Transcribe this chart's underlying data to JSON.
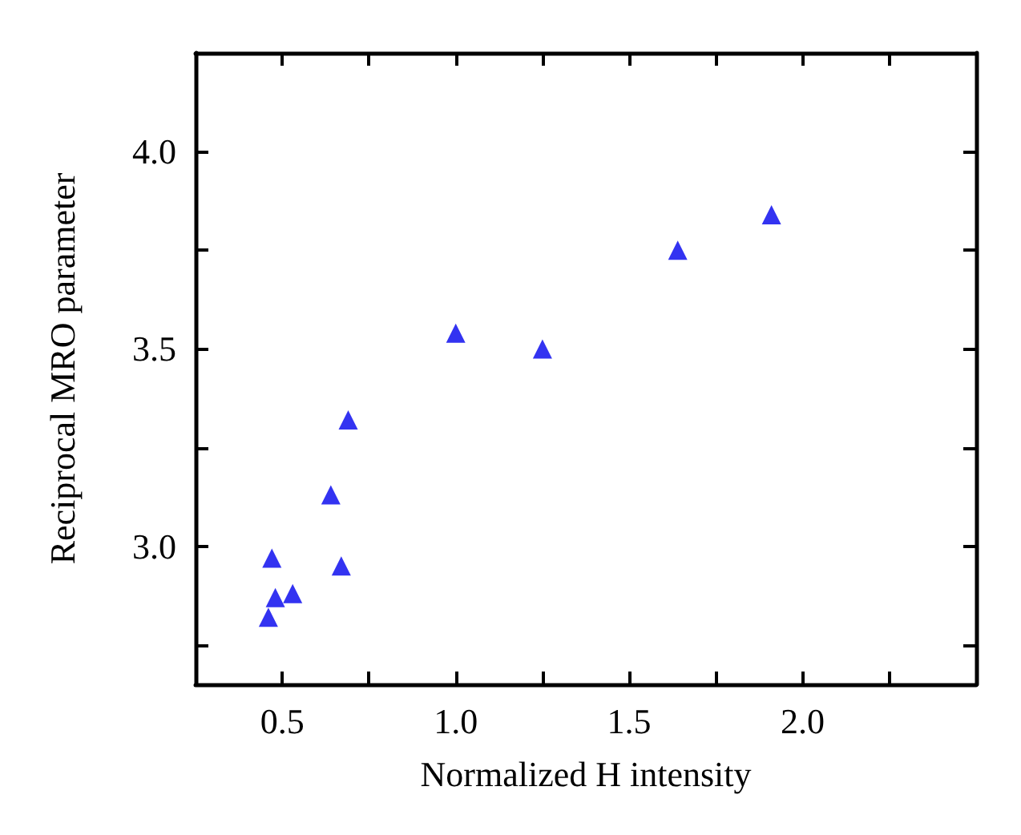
{
  "chart_data": {
    "type": "scatter",
    "xlabel": "Normalized H intensity",
    "ylabel": "Reciprocal MRO parameter",
    "marker": "triangle",
    "grid": false,
    "x": [
      0.46,
      0.48,
      0.53,
      0.47,
      0.67,
      0.64,
      0.69,
      1.0,
      1.25,
      1.64,
      1.91
    ],
    "series": [
      {
        "color": "#0000ee",
        "values": [
          2.82,
          2.87,
          2.88,
          2.97,
          2.95,
          3.13,
          3.32,
          3.54,
          3.5,
          3.75,
          3.84
        ]
      }
    ],
    "xlim": [
      0.25,
      2.5
    ],
    "xticks": [
      {
        "value": 0.5,
        "label": "0.5"
      },
      {
        "value": 0.75,
        "label": null
      },
      {
        "value": 1.0,
        "label": "1.0"
      },
      {
        "value": 1.25,
        "label": null
      },
      {
        "value": 1.5,
        "label": "1.5"
      },
      {
        "value": 1.75,
        "label": null
      },
      {
        "value": 2.0,
        "label": "2.0"
      },
      {
        "value": 2.25,
        "label": null
      }
    ],
    "ylim": [
      2.65,
      4.25
    ],
    "yticks": [
      {
        "value": 2.75,
        "label": null
      },
      {
        "value": 3.0,
        "label": "3.0"
      },
      {
        "value": 3.25,
        "label": null
      },
      {
        "value": 3.5,
        "label": "3.5"
      },
      {
        "value": 3.75,
        "label": null
      },
      {
        "value": 4.0,
        "label": "4.0"
      }
    ]
  }
}
